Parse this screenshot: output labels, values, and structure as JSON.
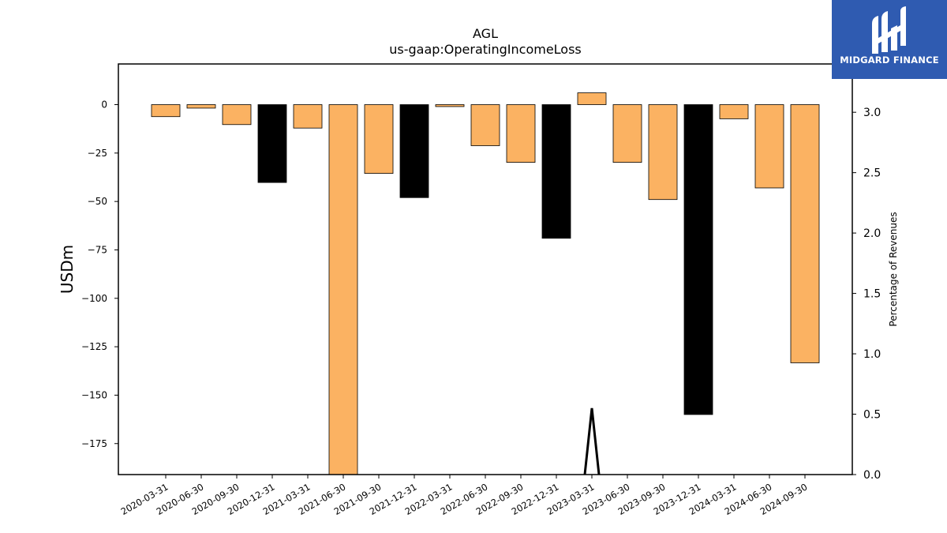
{
  "chart_data": {
    "type": "bar",
    "title": "AGL",
    "subtitle": "us-gaap:OperatingIncomeLoss",
    "ylabel": "USDm",
    "y2label": "Percentage of Revenues",
    "categories": [
      "2020-03-31",
      "2020-06-30",
      "2020-09-30",
      "2020-12-31",
      "2021-03-31",
      "2021-06-30",
      "2021-09-30",
      "2021-12-31",
      "2022-03-31",
      "2022-06-30",
      "2022-09-30",
      "2022-12-31",
      "2023-03-31",
      "2023-06-30",
      "2023-09-30",
      "2023-12-31",
      "2024-03-31",
      "2024-06-30",
      "2024-09-30"
    ],
    "series": [
      {
        "values": [
          -6.2,
          -1.8,
          -10.3,
          -40.2,
          -12.1,
          -191,
          -35.5,
          -48.0,
          -1.0,
          -21.2,
          -29.8,
          -69.0,
          6.1,
          -29.8,
          -49.0,
          -160.0,
          -7.3,
          -43.0,
          -133.3
        ],
        "colors": [
          "#fbb262",
          "#fbb262",
          "#fbb262",
          "#000000",
          "#fbb262",
          "#fbb262",
          "#fbb262",
          "#000000",
          "#fbb262",
          "#fbb262",
          "#fbb262",
          "#000000",
          "#fbb262",
          "#fbb262",
          "#fbb262",
          "#000000",
          "#fbb262",
          "#fbb262",
          "#fbb262"
        ]
      }
    ],
    "line_series": {
      "points": [
        [
          11.8,
          0
        ],
        [
          12.0,
          0.55
        ],
        [
          12.2,
          0
        ]
      ]
    },
    "ylim": [
      -191,
      21
    ],
    "y_ticks": [
      0,
      -25,
      -50,
      -75,
      -100,
      -125,
      -150,
      -175
    ],
    "y2lim": [
      0,
      3.4
    ],
    "y2_ticks": [
      0.0,
      0.5,
      1.0,
      1.5,
      2.0,
      2.5,
      3.0
    ],
    "grid": false
  },
  "logo": {
    "text": "MIDGARD FINANCE",
    "background": "#2f5bb1"
  }
}
